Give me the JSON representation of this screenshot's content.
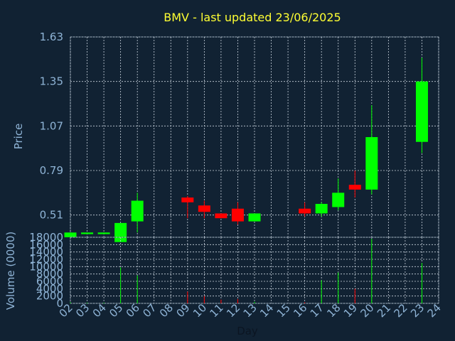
{
  "chart_data": {
    "type": "candlestick",
    "title": "BMV - last updated 23/06/2025",
    "xlabel": "Day",
    "price_ylabel": "Price",
    "volume_ylabel": "Volume (0000)",
    "x_ticks": [
      "02",
      "03",
      "04",
      "05",
      "06",
      "07",
      "08",
      "09",
      "10",
      "11",
      "12",
      "13",
      "14",
      "15",
      "16",
      "17",
      "18",
      "19",
      "20",
      "21",
      "22",
      "23",
      "24"
    ],
    "price_ticks": [
      "0.51",
      "0.79",
      "1.07",
      "1.35",
      "1.63"
    ],
    "price_ylim": [
      0.37,
      1.63
    ],
    "volume_ticks": [
      "0",
      "2000",
      "4000",
      "6000",
      "8000",
      "10000",
      "12000",
      "14000",
      "16000",
      "18000"
    ],
    "volume_ylim": [
      0,
      18000
    ],
    "grid": true,
    "colors": {
      "background": "#112233",
      "up": "#00ff00",
      "down": "#ff0000",
      "grid": "#c8d2dc",
      "title": "#ffff33",
      "axis": "#8fb4d6"
    },
    "candles": [
      {
        "day": 2,
        "open": 0.37,
        "high": 0.4,
        "low": 0.37,
        "close": 0.4,
        "volume": 300
      },
      {
        "day": 3,
        "open": 0.39,
        "high": 0.4,
        "low": 0.39,
        "close": 0.4,
        "volume": 200
      },
      {
        "day": 4,
        "open": 0.39,
        "high": 0.4,
        "low": 0.39,
        "close": 0.4,
        "volume": 200
      },
      {
        "day": 5,
        "open": 0.34,
        "high": 0.46,
        "low": 0.34,
        "close": 0.46,
        "volume": 9800
      },
      {
        "day": 6,
        "open": 0.47,
        "high": 0.65,
        "low": 0.4,
        "close": 0.6,
        "volume": 7600
      },
      {
        "day": 9,
        "open": 0.62,
        "high": 0.63,
        "low": 0.49,
        "close": 0.59,
        "volume": 3200
      },
      {
        "day": 10,
        "open": 0.57,
        "high": 0.6,
        "low": 0.49,
        "close": 0.53,
        "volume": 2000
      },
      {
        "day": 11,
        "open": 0.52,
        "high": 0.52,
        "low": 0.49,
        "close": 0.49,
        "volume": 1000
      },
      {
        "day": 12,
        "open": 0.55,
        "high": 0.59,
        "low": 0.45,
        "close": 0.47,
        "volume": 1200
      },
      {
        "day": 13,
        "open": 0.47,
        "high": 0.52,
        "low": 0.47,
        "close": 0.52,
        "volume": 400
      },
      {
        "day": 16,
        "open": 0.55,
        "high": 0.59,
        "low": 0.5,
        "close": 0.52,
        "volume": 300
      },
      {
        "day": 17,
        "open": 0.52,
        "high": 0.59,
        "low": 0.5,
        "close": 0.58,
        "volume": 6300
      },
      {
        "day": 18,
        "open": 0.56,
        "high": 0.74,
        "low": 0.54,
        "close": 0.65,
        "volume": 8400
      },
      {
        "day": 19,
        "open": 0.7,
        "high": 0.79,
        "low": 0.62,
        "close": 0.67,
        "volume": 4000
      },
      {
        "day": 20,
        "open": 0.67,
        "high": 1.2,
        "low": 0.64,
        "close": 1.0,
        "volume": 17600
      },
      {
        "day": 23,
        "open": 0.97,
        "high": 1.5,
        "low": 0.9,
        "close": 1.35,
        "volume": 11000
      }
    ]
  }
}
